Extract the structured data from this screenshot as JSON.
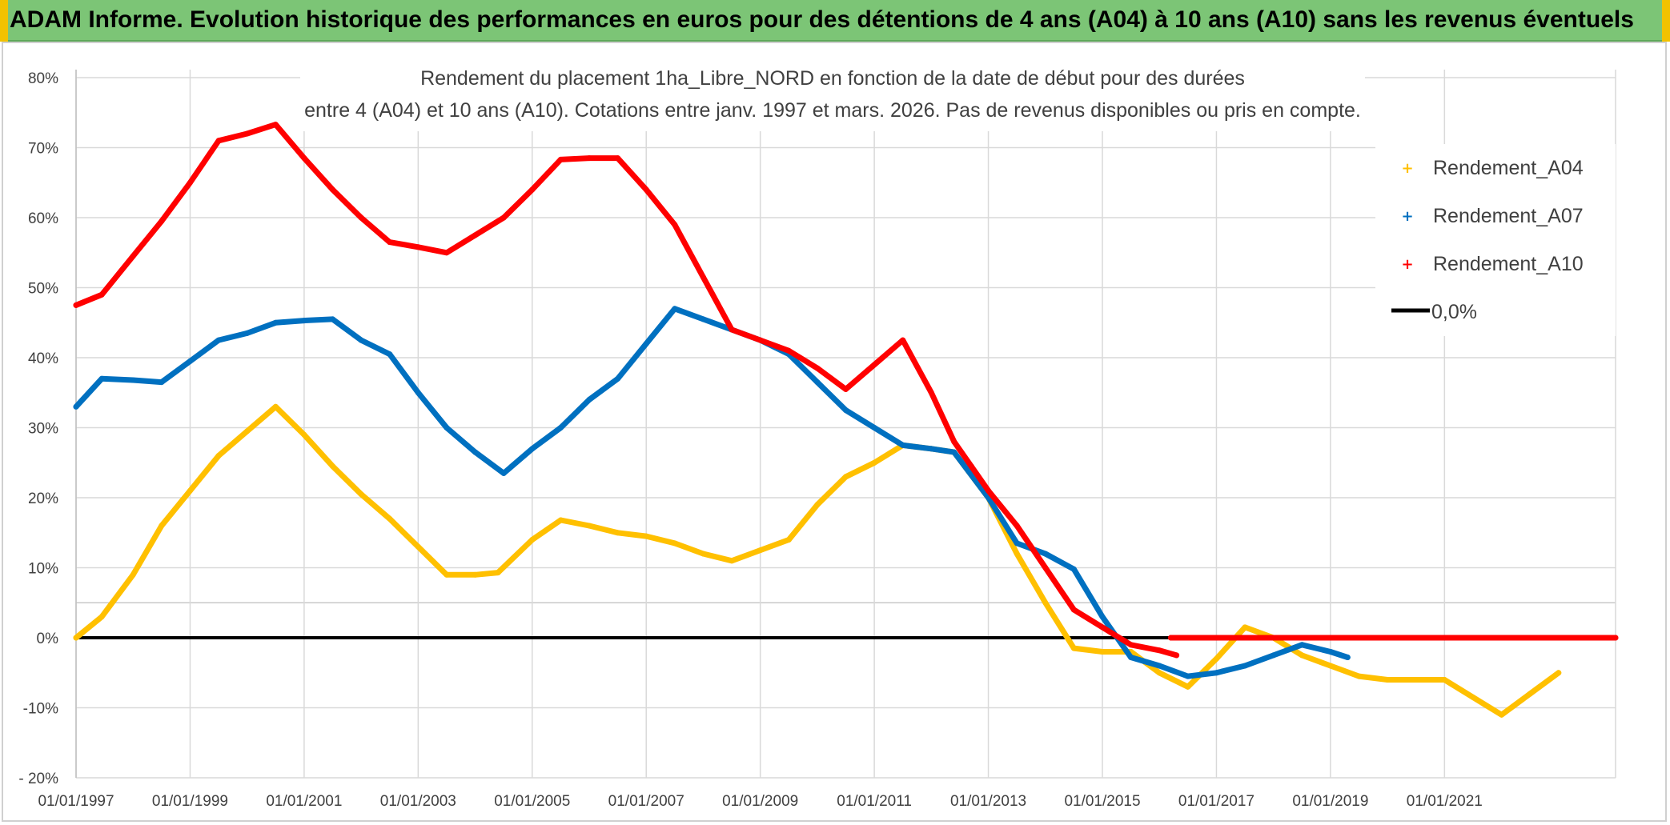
{
  "banner": {
    "title": "ADAM Informe. Evolution historique des performances en euros pour des détentions de 4 ans (A04) à 10 ans (A10) sans les revenus éventuels",
    "color": "#7cc576"
  },
  "chart_data": {
    "type": "line",
    "title_line1": "Rendement du placement 1ha_Libre_NORD en fonction de la date de début pour des durées",
    "title_line2": "entre 4 (A04) et 10 ans (A10). Cotations entre janv. 1997 et mars. 2026. Pas de revenus disponibles ou pris en compte.",
    "xlabel": "",
    "ylabel": "",
    "ylim": [
      -20,
      80
    ],
    "yticks": [
      -20,
      -10,
      0,
      10,
      20,
      30,
      40,
      50,
      60,
      70,
      80
    ],
    "ytick_labels": [
      "- 20%",
      "-10%",
      "0%",
      "10%",
      "20%",
      "30%",
      "40%",
      "50%",
      "60%",
      "70%",
      "80%"
    ],
    "xlim": [
      1997.0,
      2024.0
    ],
    "xticks": [
      1997,
      1999,
      2001,
      2003,
      2005,
      2007,
      2009,
      2011,
      2013,
      2015,
      2017,
      2019,
      2021
    ],
    "xtick_labels": [
      "01/01/1997",
      "01/01/1999",
      "01/01/2001",
      "01/01/2003",
      "01/01/2005",
      "01/01/2007",
      "01/01/2009",
      "01/01/2011",
      "01/01/2013",
      "01/01/2015",
      "01/01/2017",
      "01/01/2019",
      "01/01/2021"
    ],
    "grid": true,
    "legend_position": "top-right",
    "series": [
      {
        "name": "Rendement_A04",
        "color": "#ffc000",
        "points": [
          [
            1997.0,
            0
          ],
          [
            1997.45,
            3
          ],
          [
            1998.0,
            9
          ],
          [
            1998.5,
            16
          ],
          [
            1999.0,
            21
          ],
          [
            1999.5,
            26
          ],
          [
            2000.0,
            29.5
          ],
          [
            2000.5,
            33
          ],
          [
            2001.0,
            29
          ],
          [
            2001.5,
            24.5
          ],
          [
            2002.0,
            20.5
          ],
          [
            2002.5,
            17
          ],
          [
            2003.0,
            13
          ],
          [
            2003.5,
            9
          ],
          [
            2004.0,
            9
          ],
          [
            2004.4,
            9.3
          ],
          [
            2005.0,
            14
          ],
          [
            2005.5,
            16.8
          ],
          [
            2006.0,
            16
          ],
          [
            2006.5,
            15
          ],
          [
            2007.0,
            14.5
          ],
          [
            2007.5,
            13.5
          ],
          [
            2008.0,
            12
          ],
          [
            2008.5,
            11
          ],
          [
            2009.0,
            12.5
          ],
          [
            2009.5,
            14
          ],
          [
            2010.0,
            19
          ],
          [
            2010.5,
            23
          ],
          [
            2011.0,
            25
          ],
          [
            2011.5,
            27.5
          ],
          [
            2012.0,
            27
          ],
          [
            2012.4,
            26.5
          ],
          [
            2013.0,
            20
          ],
          [
            2013.5,
            12
          ],
          [
            2014.0,
            5
          ],
          [
            2014.5,
            -1.5
          ],
          [
            2015.0,
            -2
          ],
          [
            2015.5,
            -2
          ],
          [
            2016.0,
            -5
          ],
          [
            2016.5,
            -7
          ],
          [
            2017.0,
            -3
          ],
          [
            2017.5,
            1.5
          ],
          [
            2018.0,
            0
          ],
          [
            2018.5,
            -2.5
          ],
          [
            2019.0,
            -4
          ],
          [
            2019.5,
            -5.5
          ],
          [
            2020.0,
            -6
          ],
          [
            2020.5,
            -6
          ],
          [
            2021.0,
            -6
          ],
          [
            2021.5,
            -8.5
          ],
          [
            2022.0,
            -11
          ],
          [
            2022.5,
            -8
          ],
          [
            2023.0,
            -5
          ]
        ]
      },
      {
        "name": "Rendement_A07",
        "color": "#0070c0",
        "points": [
          [
            1997.0,
            33
          ],
          [
            1997.45,
            37
          ],
          [
            1998.0,
            36.8
          ],
          [
            1998.5,
            36.5
          ],
          [
            1999.0,
            39.5
          ],
          [
            1999.5,
            42.5
          ],
          [
            2000.0,
            43.5
          ],
          [
            2000.5,
            45
          ],
          [
            2001.0,
            45.3
          ],
          [
            2001.5,
            45.5
          ],
          [
            2002.0,
            42.5
          ],
          [
            2002.5,
            40.5
          ],
          [
            2003.0,
            35
          ],
          [
            2003.5,
            30
          ],
          [
            2004.0,
            26.5
          ],
          [
            2004.5,
            23.5
          ],
          [
            2005.0,
            27
          ],
          [
            2005.5,
            30
          ],
          [
            2006.0,
            34
          ],
          [
            2006.5,
            37
          ],
          [
            2007.0,
            42
          ],
          [
            2007.5,
            47
          ],
          [
            2008.0,
            45.5
          ],
          [
            2008.5,
            44
          ],
          [
            2009.0,
            42.5
          ],
          [
            2009.5,
            40.5
          ],
          [
            2010.0,
            36.5
          ],
          [
            2010.5,
            32.5
          ],
          [
            2011.0,
            30
          ],
          [
            2011.5,
            27.5
          ],
          [
            2012.0,
            27
          ],
          [
            2012.4,
            26.5
          ],
          [
            2013.0,
            20
          ],
          [
            2013.5,
            13.5
          ],
          [
            2014.0,
            12
          ],
          [
            2014.5,
            9.8
          ],
          [
            2015.0,
            3
          ],
          [
            2015.5,
            -2.8
          ],
          [
            2016.0,
            -4
          ],
          [
            2016.5,
            -5.5
          ],
          [
            2017.0,
            -5
          ],
          [
            2017.5,
            -4
          ],
          [
            2018.0,
            -2.5
          ],
          [
            2018.5,
            -1
          ],
          [
            2019.0,
            -2
          ],
          [
            2019.3,
            -2.8
          ]
        ]
      },
      {
        "name": "Rendement_A10",
        "color": "#ff0000",
        "points": [
          [
            1997.0,
            47.5
          ],
          [
            1997.45,
            49
          ],
          [
            1998.0,
            54.5
          ],
          [
            1998.5,
            59.5
          ],
          [
            1999.0,
            65
          ],
          [
            1999.5,
            71
          ],
          [
            2000.0,
            72
          ],
          [
            2000.5,
            73.3
          ],
          [
            2001.0,
            68.5
          ],
          [
            2001.5,
            64
          ],
          [
            2002.0,
            60
          ],
          [
            2002.5,
            56.5
          ],
          [
            2003.0,
            55.8
          ],
          [
            2003.5,
            55
          ],
          [
            2004.0,
            57.5
          ],
          [
            2004.5,
            60
          ],
          [
            2005.0,
            64
          ],
          [
            2005.5,
            68.3
          ],
          [
            2006.0,
            68.5
          ],
          [
            2006.5,
            68.5
          ],
          [
            2007.0,
            64
          ],
          [
            2007.5,
            59
          ],
          [
            2008.0,
            51.5
          ],
          [
            2008.5,
            44
          ],
          [
            2009.0,
            42.5
          ],
          [
            2009.5,
            41
          ],
          [
            2010.0,
            38.5
          ],
          [
            2010.5,
            35.5
          ],
          [
            2011.0,
            39
          ],
          [
            2011.5,
            42.5
          ],
          [
            2012.0,
            35
          ],
          [
            2012.4,
            28
          ],
          [
            2012.7,
            24.5
          ],
          [
            2013.0,
            21
          ],
          [
            2013.5,
            16
          ],
          [
            2014.0,
            10
          ],
          [
            2014.5,
            4
          ],
          [
            2015.0,
            1.5
          ],
          [
            2015.5,
            -1
          ],
          [
            2016.0,
            -1.8
          ],
          [
            2016.3,
            -2.5
          ]
        ]
      },
      {
        "name": "Rendement_A10",
        "color": "#ff0000",
        "points": [
          [
            2016.2,
            0
          ],
          [
            2024.0,
            0
          ]
        ]
      },
      {
        "name": "0,0%",
        "color": "#000000",
        "points": [
          [
            1997.0,
            0
          ],
          [
            2024.0,
            0
          ]
        ]
      }
    ],
    "legend": [
      {
        "label": "Rendement_A04",
        "color": "#ffc000",
        "marker": "+"
      },
      {
        "label": "Rendement_A07",
        "color": "#0070c0",
        "marker": "+"
      },
      {
        "label": "Rendement_A10",
        "color": "#ff0000",
        "marker": "+"
      },
      {
        "label": "0,0%",
        "color": "#000000",
        "marker": "line"
      }
    ]
  }
}
